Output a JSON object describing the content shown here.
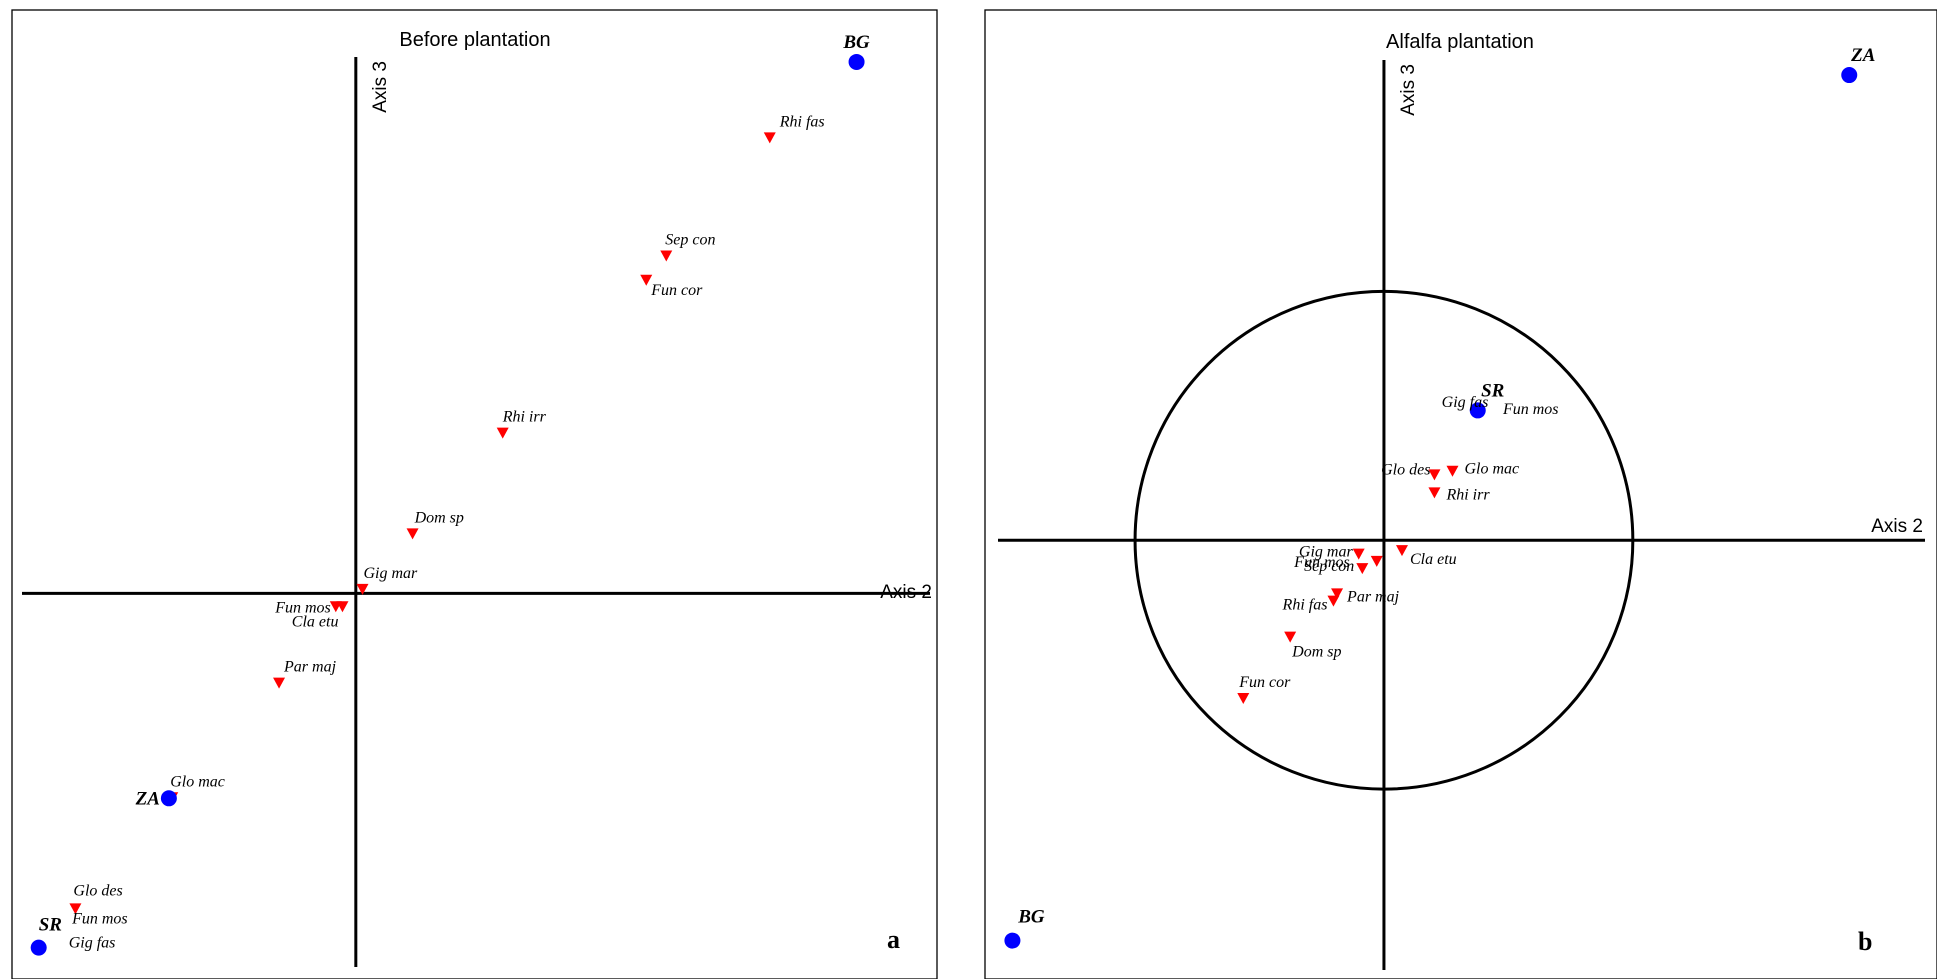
{
  "colors": {
    "species_marker": "#ff0000",
    "site_marker": "#0000ff",
    "axes": "#000000"
  },
  "chart_data": [
    {
      "type": "scatter",
      "panel": "a",
      "title": "Before plantation",
      "xlabel": "Axis 2",
      "ylabel": "Axis 3",
      "xlim": [
        -1.0,
        1.72
      ],
      "ylim": [
        -1.07,
        1.55
      ],
      "grid": false,
      "series": [
        {
          "name": "species",
          "marker": "triangle-down",
          "points": [
            {
              "label": "Rhi fas",
              "x": 1.24,
              "y": 1.31
            },
            {
              "label": "Sep con",
              "x": 0.93,
              "y": 0.97
            },
            {
              "label": "Fun cor",
              "x": 0.87,
              "y": 0.9
            },
            {
              "label": "Rhi irr",
              "x": 0.44,
              "y": 0.46
            },
            {
              "label": "Dom sp",
              "x": 0.17,
              "y": 0.17
            },
            {
              "label": "Gig mar",
              "x": 0.02,
              "y": 0.01
            },
            {
              "label": "Fun mos",
              "x": -0.06,
              "y": -0.04
            },
            {
              "label": "Cla etu",
              "x": -0.04,
              "y": -0.04
            },
            {
              "label": "Par maj",
              "x": -0.23,
              "y": -0.26
            },
            {
              "label": "Glo mac",
              "x": -0.55,
              "y": -0.59
            },
            {
              "label": "Glo des",
              "x": -0.84,
              "y": -0.91
            }
          ]
        },
        {
          "name": "sites",
          "marker": "circle",
          "points": [
            {
              "label": "BG",
              "x": 1.5,
              "y": 1.53
            },
            {
              "label": "ZA",
              "x": -0.56,
              "y": -0.59
            },
            {
              "label": "SR",
              "x": -0.95,
              "y": -1.02
            }
          ]
        }
      ],
      "extra_labels": [
        {
          "text": "Fun mos",
          "x": -0.85,
          "y": -0.95
        },
        {
          "text": "Gig fas",
          "x": -0.86,
          "y": -1.02
        }
      ]
    },
    {
      "type": "scatter",
      "panel": "b",
      "title": "Alfalfa plantation",
      "xlabel": "Axis 2",
      "ylabel": "Axis 3",
      "xlim": [
        -1.07,
        1.5
      ],
      "ylim": [
        -1.15,
        1.34
      ],
      "grid": false,
      "circle_radius": 0.69,
      "series": [
        {
          "name": "species",
          "marker": "triangle-down",
          "points": [
            {
              "label": "Glo des",
              "x": 0.14,
              "y": 0.18
            },
            {
              "label": "Glo mac",
              "x": 0.19,
              "y": 0.19
            },
            {
              "label": "Rhi irr",
              "x": 0.14,
              "y": 0.13
            },
            {
              "label": "Cla etu",
              "x": 0.05,
              "y": -0.03
            },
            {
              "label": "Gig mar",
              "x": -0.07,
              "y": -0.04
            },
            {
              "label": "Sep con",
              "x": -0.06,
              "y": -0.08
            },
            {
              "label": "Fun mos",
              "x": -0.02,
              "y": -0.06
            },
            {
              "label": "Par maj",
              "x": -0.13,
              "y": -0.15
            },
            {
              "label": "Rhi fas",
              "x": -0.14,
              "y": -0.17
            },
            {
              "label": "Dom sp",
              "x": -0.26,
              "y": -0.27
            },
            {
              "label": "Fun cor",
              "x": -0.39,
              "y": -0.44
            }
          ]
        },
        {
          "name": "sites",
          "marker": "circle",
          "points": [
            {
              "label": "ZA",
              "x": 1.29,
              "y": 1.29
            },
            {
              "label": "SR",
              "x": 0.26,
              "y": 0.36
            },
            {
              "label": "BG",
              "x": -1.03,
              "y": -1.11
            }
          ]
        }
      ],
      "extra_labels": [
        {
          "text": "Gig fas",
          "x": 0.16,
          "y": 0.37
        },
        {
          "text": "Fun mos",
          "x": 0.33,
          "y": 0.35
        }
      ]
    }
  ]
}
